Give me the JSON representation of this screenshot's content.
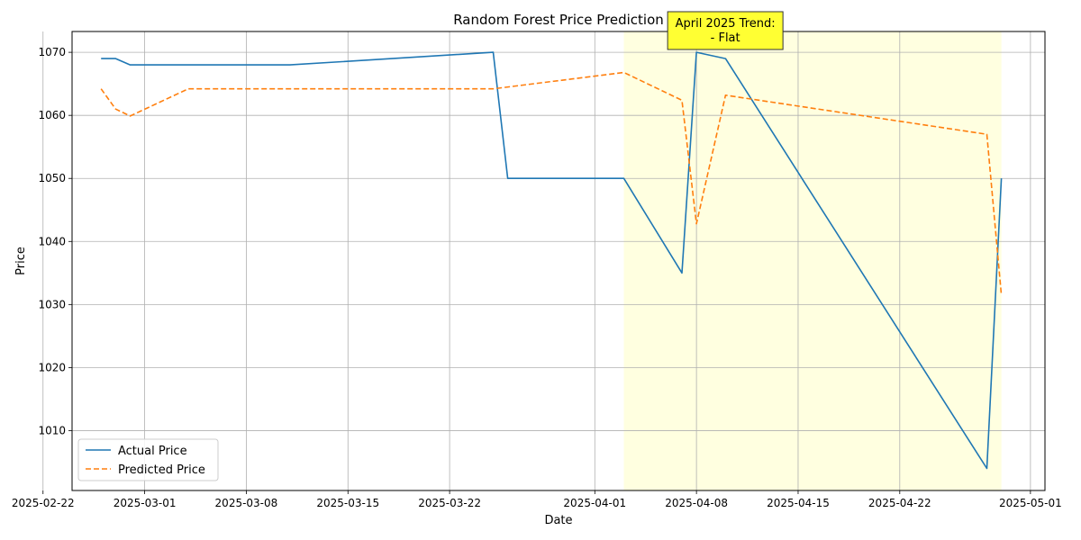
{
  "chart_data": {
    "type": "line",
    "title": "Random Forest Price Prediction",
    "xlabel": "Date",
    "ylabel": "Price",
    "xlim": [
      "2025-02-24",
      "2025-05-02"
    ],
    "ylim": [
      1000.5,
      1073.3
    ],
    "x_ticks": [
      "2025-02-22",
      "2025-03-01",
      "2025-03-08",
      "2025-03-15",
      "2025-03-22",
      "2025-04-01",
      "2025-04-08",
      "2025-04-15",
      "2025-04-22",
      "2025-05-01"
    ],
    "y_ticks": [
      1010,
      1020,
      1030,
      1040,
      1050,
      1060,
      1070
    ],
    "grid": true,
    "legend_position": "lower-left",
    "series": [
      {
        "name": "Actual Price",
        "color": "#1f77b4",
        "style": "solid",
        "points": [
          [
            "2025-02-26",
            1069
          ],
          [
            "2025-02-27",
            1069
          ],
          [
            "2025-02-28",
            1068
          ],
          [
            "2025-03-11",
            1068
          ],
          [
            "2025-03-25",
            1070
          ],
          [
            "2025-03-26",
            1050
          ],
          [
            "2025-04-03",
            1050
          ],
          [
            "2025-04-07",
            1035
          ],
          [
            "2025-04-08",
            1070
          ],
          [
            "2025-04-10",
            1069
          ],
          [
            "2025-04-28",
            1004
          ],
          [
            "2025-04-29",
            1050
          ]
        ]
      },
      {
        "name": "Predicted Price",
        "color": "#ff7f0e",
        "style": "dashed",
        "points": [
          [
            "2025-02-26",
            1064.2
          ],
          [
            "2025-02-27",
            1061.0
          ],
          [
            "2025-02-28",
            1059.9
          ],
          [
            "2025-03-04",
            1064.2
          ],
          [
            "2025-03-25",
            1064.2
          ],
          [
            "2025-04-03",
            1066.8
          ],
          [
            "2025-04-07",
            1062.4
          ],
          [
            "2025-04-08",
            1042.8
          ],
          [
            "2025-04-10",
            1063.2
          ],
          [
            "2025-04-28",
            1057.0
          ],
          [
            "2025-04-29",
            1031.5
          ]
        ]
      }
    ],
    "highlight": {
      "from": "2025-04-03",
      "to": "2025-04-29",
      "color": "#ffffe0"
    },
    "annotation": {
      "lines": [
        "April 2025 Trend:",
        "- Flat"
      ],
      "background": "#ffff33"
    }
  }
}
